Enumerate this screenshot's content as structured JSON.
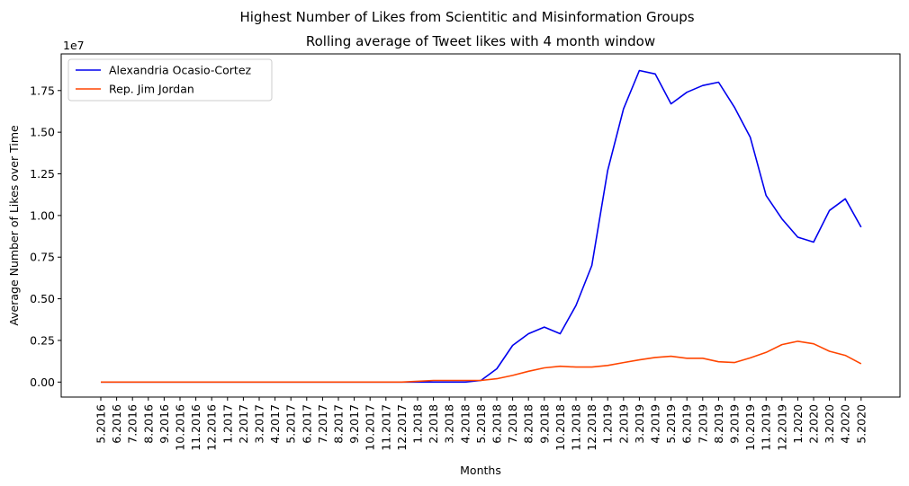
{
  "figure": {
    "suptitle": "Highest Number of Likes from Scientitic and Misinformation Groups"
  },
  "chart_data": {
    "type": "line",
    "title": "Rolling average of Tweet likes with 4 month window",
    "xlabel": "Months",
    "ylabel": "Average Number of Likes over Time",
    "y_offset_label": "1e7",
    "y_scale_factor": 10000000,
    "ylim": [
      -0.09,
      1.97
    ],
    "yticks": [
      0.0,
      0.25,
      0.5,
      0.75,
      1.0,
      1.25,
      1.5,
      1.75
    ],
    "ytick_labels": [
      "0.00",
      "0.25",
      "0.50",
      "0.75",
      "1.00",
      "1.25",
      "1.50",
      "1.75"
    ],
    "grid": false,
    "legend_position": "top-left",
    "x": [
      "5.2016",
      "6.2016",
      "7.2016",
      "8.2016",
      "9.2016",
      "10.2016",
      "11.2016",
      "12.2016",
      "1.2017",
      "2.2017",
      "3.2017",
      "4.2017",
      "5.2017",
      "6.2017",
      "7.2017",
      "8.2017",
      "9.2017",
      "10.2017",
      "11.2017",
      "12.2017",
      "1.2018",
      "2.2018",
      "3.2018",
      "4.2018",
      "5.2018",
      "6.2018",
      "7.2018",
      "8.2018",
      "9.2018",
      "10.2018",
      "11.2018",
      "12.2018",
      "1.2019",
      "2.2019",
      "3.2019",
      "4.2019",
      "5.2019",
      "6.2019",
      "7.2019",
      "8.2019",
      "9.2019",
      "10.2019",
      "11.2019",
      "12.2019",
      "1.2020",
      "2.2020",
      "3.2020",
      "4.2020",
      "5.2020"
    ],
    "series": [
      {
        "name": "Alexandria Ocasio-Cortez",
        "color": "#0000ee",
        "values": [
          0,
          0,
          0,
          0,
          0,
          0,
          0,
          0,
          0,
          0,
          0,
          0,
          0,
          0,
          0,
          0,
          0,
          0,
          0,
          0,
          0,
          0,
          0,
          0,
          0.01,
          0.08,
          0.22,
          0.29,
          0.33,
          0.29,
          0.46,
          0.7,
          1.27,
          1.64,
          1.87,
          1.85,
          1.67,
          1.74,
          1.78,
          1.8,
          1.65,
          1.47,
          1.12,
          0.98,
          0.87,
          0.84,
          1.03,
          1.1,
          0.93
        ]
      },
      {
        "name": "Rep. Jim Jordan",
        "color": "#ff4500",
        "values": [
          0,
          0,
          0,
          0,
          0,
          0,
          0,
          0,
          0,
          0,
          0,
          0,
          0,
          0,
          0,
          0,
          0,
          0,
          0,
          0,
          0.005,
          0.01,
          0.01,
          0.01,
          0.01,
          0.02,
          0.04,
          0.065,
          0.085,
          0.095,
          0.09,
          0.09,
          0.1,
          0.117,
          0.133,
          0.148,
          0.155,
          0.143,
          0.143,
          0.122,
          0.117,
          0.145,
          0.178,
          0.225,
          0.245,
          0.23,
          0.185,
          0.16,
          0.11
        ]
      }
    ]
  }
}
